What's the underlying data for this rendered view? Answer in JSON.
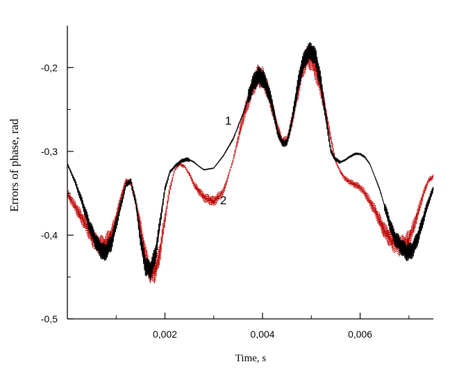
{
  "chart_data": {
    "type": "line",
    "title": "",
    "xlabel": "Time, s",
    "ylabel": "Errors of phase,  rad",
    "xlim": [
      0,
      0.0075
    ],
    "ylim": [
      -0.5,
      -0.15
    ],
    "x_ticks": [
      0.002,
      0.004,
      0.006
    ],
    "x_tick_labels": [
      "0,002",
      "0,004",
      "0,006"
    ],
    "y_ticks": [
      -0.5,
      -0.4,
      -0.3,
      -0.2
    ],
    "y_tick_labels": [
      "-0,5",
      "-0,4",
      "-0,3",
      "-0,2"
    ],
    "grid": false,
    "series": [
      {
        "name": "1",
        "color": "#000000",
        "style": "solid",
        "noise": 0.012,
        "x": [
          0,
          0.00015,
          0.0003,
          0.00045,
          0.0006,
          0.00075,
          0.0009,
          0.00105,
          0.0012,
          0.0013,
          0.0014,
          0.0015,
          0.0016,
          0.0017,
          0.0018,
          0.0019,
          0.002,
          0.0021,
          0.0022,
          0.0023,
          0.0024,
          0.0025,
          0.0026,
          0.0027,
          0.0028,
          0.003,
          0.0032,
          0.0034,
          0.0036,
          0.0038,
          0.0039,
          0.004,
          0.0041,
          0.0042,
          0.0043,
          0.0044,
          0.0045,
          0.0046,
          0.0047,
          0.0048,
          0.0049,
          0.005,
          0.0051,
          0.0052,
          0.0053,
          0.0054,
          0.0055,
          0.0056,
          0.0057,
          0.0058,
          0.0059,
          0.006,
          0.0061,
          0.0062,
          0.0063,
          0.0064,
          0.0065,
          0.0066,
          0.0067,
          0.0068,
          0.0069,
          0.007,
          0.0071,
          0.0072,
          0.0073,
          0.0074,
          0.0075
        ],
        "y": [
          -0.315,
          -0.335,
          -0.36,
          -0.388,
          -0.41,
          -0.422,
          -0.41,
          -0.375,
          -0.34,
          -0.335,
          -0.36,
          -0.405,
          -0.437,
          -0.442,
          -0.425,
          -0.385,
          -0.345,
          -0.325,
          -0.318,
          -0.313,
          -0.31,
          -0.31,
          -0.313,
          -0.318,
          -0.322,
          -0.32,
          -0.305,
          -0.285,
          -0.255,
          -0.22,
          -0.21,
          -0.212,
          -0.225,
          -0.245,
          -0.275,
          -0.29,
          -0.29,
          -0.265,
          -0.23,
          -0.2,
          -0.185,
          -0.18,
          -0.19,
          -0.22,
          -0.26,
          -0.3,
          -0.31,
          -0.313,
          -0.31,
          -0.306,
          -0.303,
          -0.303,
          -0.307,
          -0.315,
          -0.33,
          -0.345,
          -0.365,
          -0.385,
          -0.402,
          -0.41,
          -0.418,
          -0.421,
          -0.415,
          -0.4,
          -0.38,
          -0.36,
          -0.345
        ]
      },
      {
        "name": "2",
        "color": "#c00000",
        "style": "dotted",
        "noise": 0.014,
        "x": [
          0,
          0.0002,
          0.0004,
          0.0005,
          0.0006,
          0.00075,
          0.0009,
          0.001,
          0.0011,
          0.0012,
          0.0013,
          0.0014,
          0.0015,
          0.0016,
          0.0017,
          0.0018,
          0.0019,
          0.002,
          0.0021,
          0.0022,
          0.0023,
          0.0024,
          0.0025,
          0.0026,
          0.0028,
          0.003,
          0.0032,
          0.0034,
          0.0036,
          0.0038,
          0.0039,
          0.004,
          0.0041,
          0.0042,
          0.0043,
          0.0044,
          0.0045,
          0.0046,
          0.0047,
          0.0048,
          0.0049,
          0.005,
          0.0051,
          0.0052,
          0.0053,
          0.0054,
          0.0055,
          0.0056,
          0.0057,
          0.0058,
          0.0059,
          0.006,
          0.0061,
          0.0062,
          0.0063,
          0.0064,
          0.0065,
          0.0066,
          0.0067,
          0.0068,
          0.0069,
          0.007,
          0.0071,
          0.0072,
          0.0073,
          0.0074,
          0.0075
        ],
        "y": [
          -0.35,
          -0.37,
          -0.39,
          -0.402,
          -0.41,
          -0.413,
          -0.4,
          -0.38,
          -0.355,
          -0.335,
          -0.338,
          -0.36,
          -0.39,
          -0.425,
          -0.445,
          -0.443,
          -0.42,
          -0.38,
          -0.345,
          -0.322,
          -0.315,
          -0.318,
          -0.327,
          -0.34,
          -0.355,
          -0.36,
          -0.348,
          -0.31,
          -0.26,
          -0.222,
          -0.21,
          -0.212,
          -0.225,
          -0.248,
          -0.27,
          -0.288,
          -0.287,
          -0.265,
          -0.235,
          -0.205,
          -0.188,
          -0.19,
          -0.205,
          -0.225,
          -0.255,
          -0.285,
          -0.312,
          -0.325,
          -0.333,
          -0.337,
          -0.34,
          -0.343,
          -0.35,
          -0.36,
          -0.37,
          -0.383,
          -0.395,
          -0.403,
          -0.41,
          -0.413,
          -0.411,
          -0.405,
          -0.39,
          -0.37,
          -0.35,
          -0.335,
          -0.33
        ]
      }
    ],
    "annotations": [
      {
        "text": "1",
        "series": "1",
        "x": 0.00323,
        "y": -0.268
      },
      {
        "text": "2",
        "series": "2",
        "x": 0.00313,
        "y": -0.363
      }
    ]
  }
}
